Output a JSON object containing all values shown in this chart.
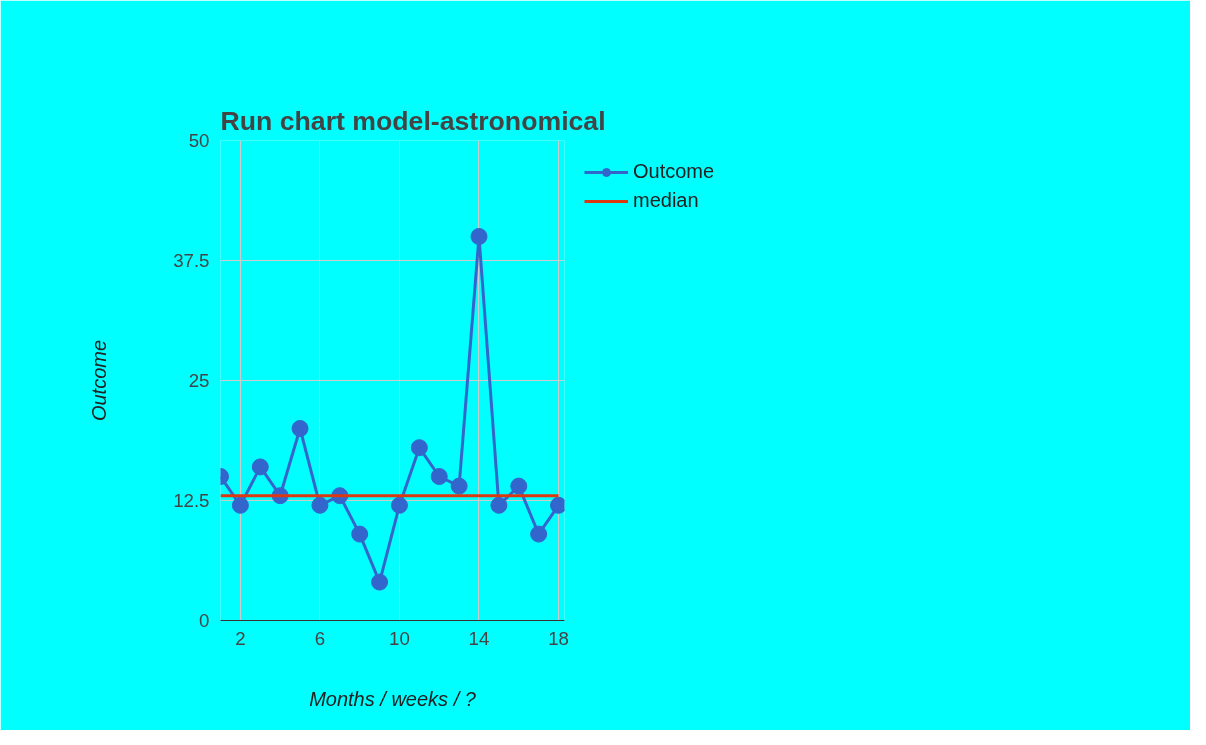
{
  "chart_data": {
    "type": "line",
    "title": "Run chart model-astronomical",
    "xlabel": "Months / weeks / ?",
    "ylabel": "Outcome",
    "x": [
      1,
      2,
      3,
      4,
      5,
      6,
      7,
      8,
      9,
      10,
      11,
      12,
      13,
      14,
      15,
      16,
      17,
      18
    ],
    "series": [
      {
        "name": "Outcome",
        "color": "#3366cc",
        "values": [
          15,
          12,
          16,
          13,
          20,
          12,
          13,
          9,
          4,
          12,
          18,
          15,
          14,
          40,
          12,
          14,
          9,
          12
        ],
        "marker": "circle"
      },
      {
        "name": "median",
        "color": "#dc3912",
        "values": [
          13,
          13,
          13,
          13,
          13,
          13,
          13,
          13,
          13,
          13,
          13,
          13,
          13,
          13,
          13,
          13,
          13,
          13
        ],
        "marker": "none"
      }
    ],
    "xlim": [
      1,
      18.3
    ],
    "xticks": [
      2,
      6,
      10,
      14,
      18
    ],
    "ylim": [
      0,
      50
    ],
    "yticks": [
      0,
      12.5,
      25,
      37.5,
      50
    ],
    "grid": true,
    "legend": "top right"
  }
}
